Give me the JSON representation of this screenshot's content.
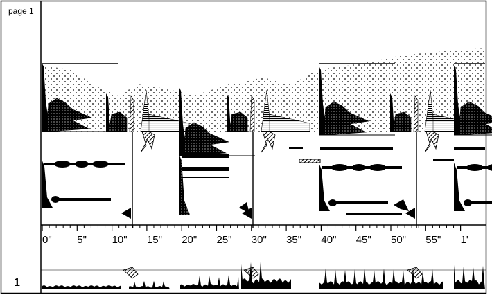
{
  "sidebar": {
    "page_label": "page 1",
    "system_number": "1"
  },
  "timeline": {
    "labels": [
      "0\"",
      "5\"",
      "10\"",
      "15\"",
      "20\"",
      "25\"",
      "30\"",
      "35\"",
      "40\"",
      "45\"",
      "50\"",
      "55\"",
      "1'"
    ]
  }
}
